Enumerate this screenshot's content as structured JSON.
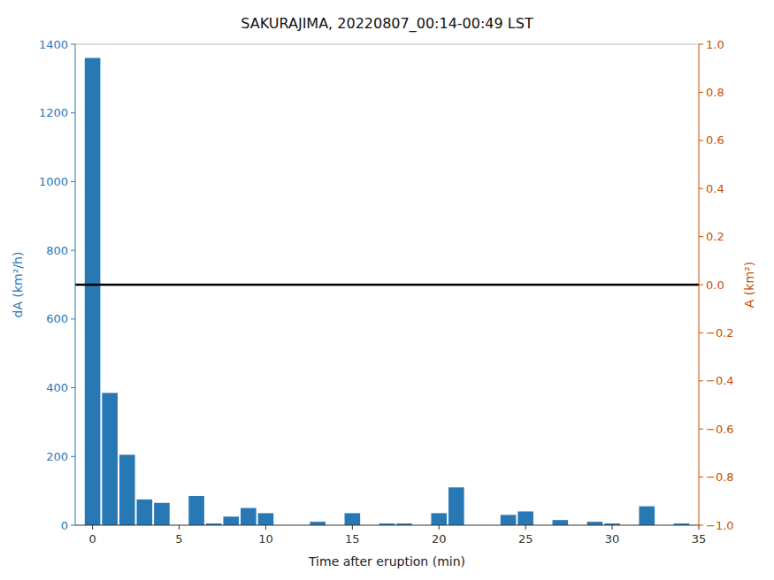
{
  "chart_data": {
    "type": "bar",
    "title": "SAKURAJIMA, 20220807_00:14-00:49 LST",
    "xlabel": "Time after eruption (min)",
    "ylabel": "dA (km²/h)",
    "y2label": "A (km²)",
    "x": [
      0,
      1,
      2,
      3,
      4,
      6,
      7,
      8,
      9,
      10,
      13,
      15,
      17,
      18,
      20,
      21,
      24,
      25,
      27,
      29,
      30,
      32,
      34
    ],
    "values": [
      1360,
      385,
      205,
      75,
      65,
      85,
      5,
      25,
      50,
      35,
      10,
      35,
      5,
      5,
      35,
      110,
      30,
      40,
      15,
      10,
      5,
      55,
      5
    ],
    "color": "#2878b5",
    "y2_color": "#c85000",
    "xlim": [
      -1,
      35
    ],
    "xticks": [
      0,
      5,
      10,
      15,
      20,
      25,
      30,
      35
    ],
    "ylim": [
      0,
      1400
    ],
    "yticks": [
      0,
      200,
      400,
      600,
      800,
      1000,
      1200,
      1400
    ],
    "y2lim": [
      -1,
      1
    ],
    "y2ticks": [
      {
        "value": -1,
        "label": "−1.0"
      },
      {
        "value": -0.8,
        "label": "−0.8"
      },
      {
        "value": -0.6,
        "label": "−0.6"
      },
      {
        "value": -0.4,
        "label": "−0.4"
      },
      {
        "value": -0.2,
        "label": "−0.2"
      },
      {
        "value": 0,
        "label": "0.0"
      },
      {
        "value": 0.2,
        "label": "0.2"
      },
      {
        "value": 0.4,
        "label": "0.4"
      },
      {
        "value": 0.6,
        "label": "0.6"
      },
      {
        "value": 0.8,
        "label": "0.8"
      },
      {
        "value": 1,
        "label": "1.0"
      }
    ],
    "hlines": [
      {
        "y": 0,
        "axis": "y2",
        "color": "black"
      }
    ],
    "grid": false
  }
}
